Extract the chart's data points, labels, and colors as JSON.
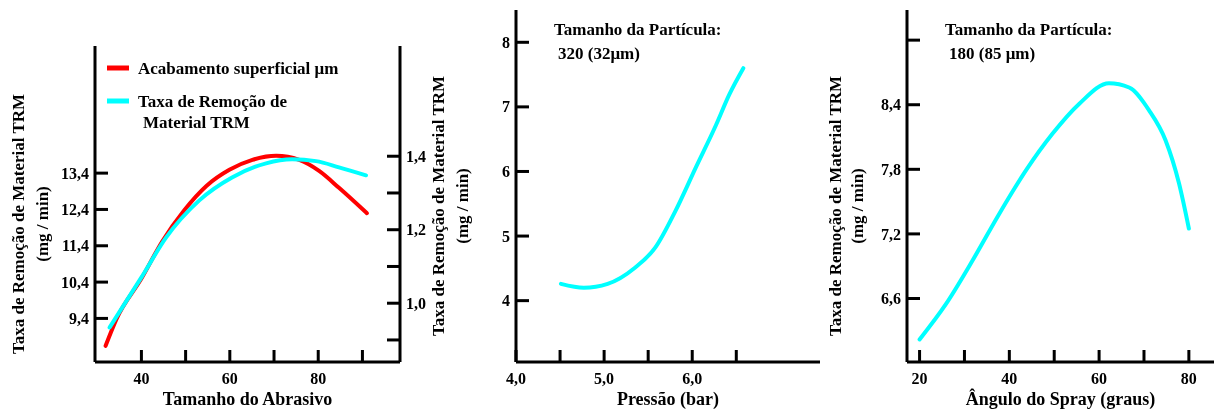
{
  "chart_data": [
    {
      "type": "line",
      "xlabel": "Tamanho do Abrasivo",
      "ylabel": "Taxa de Remoção de Material TRM\n(mg / min)",
      "xlim": [
        29.5,
        98.5
      ],
      "xticks": [
        40,
        {
          "value": 50,
          "label": null
        },
        60,
        {
          "value": 70,
          "label": null
        },
        80,
        {
          "value": 90,
          "label": null
        }
      ],
      "ylim": [
        8.2,
        16.9
      ],
      "yticks": [
        {
          "value": 9.4,
          "label": "9,4"
        },
        {
          "value": 10.4,
          "label": "10,4"
        },
        {
          "value": 11.4,
          "label": "11,4"
        },
        {
          "value": 12.4,
          "label": "12,4"
        },
        {
          "value": 13.4,
          "label": "13,4"
        }
      ],
      "y2lim": [
        0.84,
        1.7
      ],
      "y2ticks": [
        {
          "value": 0.9,
          "label": null
        },
        {
          "value": 1.0,
          "label": "1,0"
        },
        {
          "value": 1.1,
          "label": null
        },
        {
          "value": 1.2,
          "label": "1,2"
        },
        {
          "value": 1.3,
          "label": null
        },
        {
          "value": 1.4,
          "label": "1,4"
        }
      ],
      "legend": "top left",
      "grid": false,
      "line_style": "solid",
      "marker": "none",
      "series": [
        {
          "name": "Acabamento superficial μm",
          "color": "#ff0000",
          "axis": "y2",
          "x": [
            31.9,
            34.4,
            40,
            44.7,
            49.7,
            54.7,
            59.9,
            65.1,
            70.5,
            75.7,
            80.2,
            84.7,
            91.0
          ],
          "values": [
            0.884,
            0.958,
            1.067,
            1.168,
            1.253,
            1.319,
            1.363,
            1.39,
            1.401,
            1.39,
            1.36,
            1.314,
            1.245
          ]
        },
        {
          "name": "Taxa de Remoção de Material TRM",
          "color": "#00ffff",
          "x": [
            32.8,
            40,
            45.6,
            53.1,
            60.5,
            68.2,
            74.1,
            79.5,
            84.7,
            90.8
          ],
          "values": [
            9.15,
            10.53,
            11.63,
            12.65,
            13.28,
            13.67,
            13.78,
            13.73,
            13.56,
            13.34
          ]
        }
      ]
    },
    {
      "type": "line",
      "xlabel": "Pressão (bar)",
      "ylabel": "Taxa de Remoção de Material TRM\n(mg / min)",
      "annotations": [
        "Tamanho da Partícula:",
        "320 (32μm)"
      ],
      "xlim": [
        4.0,
        7.45
      ],
      "xticks": [
        {
          "value": 4.0,
          "label": "4,0"
        },
        {
          "value": 4.5,
          "label": null
        },
        {
          "value": 5.0,
          "label": "5,0"
        },
        {
          "value": 5.5,
          "label": null
        },
        {
          "value": 6.0,
          "label": "6,0"
        },
        {
          "value": 6.5,
          "label": null
        }
      ],
      "ylim": [
        3.05,
        8.5
      ],
      "yticks": [
        4,
        5,
        6,
        7,
        8
      ],
      "legend": false,
      "grid": false,
      "line_style": "solid",
      "marker": "none",
      "series": [
        {
          "color": "#00ffff",
          "x": [
            4.51,
            4.77,
            5.04,
            5.35,
            5.58,
            5.81,
            6.04,
            6.27,
            6.42,
            6.58
          ],
          "values": [
            4.26,
            4.2,
            4.26,
            4.51,
            4.82,
            5.39,
            6.06,
            6.72,
            7.19,
            7.6
          ]
        }
      ]
    },
    {
      "type": "line",
      "xlabel": "Ângulo do Spray (graus)",
      "ylabel": "Taxa de Remoção de Material TRM\n(mg / min)",
      "annotations": [
        "Tamanho da Partícula:",
        "180 (85 μm)"
      ],
      "xlim": [
        17.2,
        85.6
      ],
      "xticks": [
        20,
        {
          "value": 30,
          "label": null
        },
        40,
        {
          "value": 50,
          "label": null
        },
        60,
        {
          "value": 70,
          "label": null
        },
        80
      ],
      "ylim": [
        6.01,
        9.28
      ],
      "yticks": [
        {
          "value": 6.6,
          "label": "6,6"
        },
        {
          "value": 7.2,
          "label": "7,2"
        },
        {
          "value": 7.8,
          "label": "7,8"
        },
        {
          "value": 8.4,
          "label": "8,4"
        },
        {
          "value": 9.0,
          "label": null
        }
      ],
      "legend": false,
      "grid": false,
      "line_style": "solid",
      "marker": "none",
      "series": [
        {
          "color": "#00ffff",
          "x": [
            20,
            25.9,
            31.9,
            37.8,
            43.7,
            49.6,
            55.6,
            62.2,
            66.7,
            71.1,
            74.8,
            77.8,
            80
          ],
          "values": [
            6.22,
            6.55,
            6.96,
            7.39,
            7.79,
            8.13,
            8.41,
            8.6,
            8.56,
            8.35,
            8.07,
            7.67,
            7.25
          ]
        }
      ]
    }
  ]
}
